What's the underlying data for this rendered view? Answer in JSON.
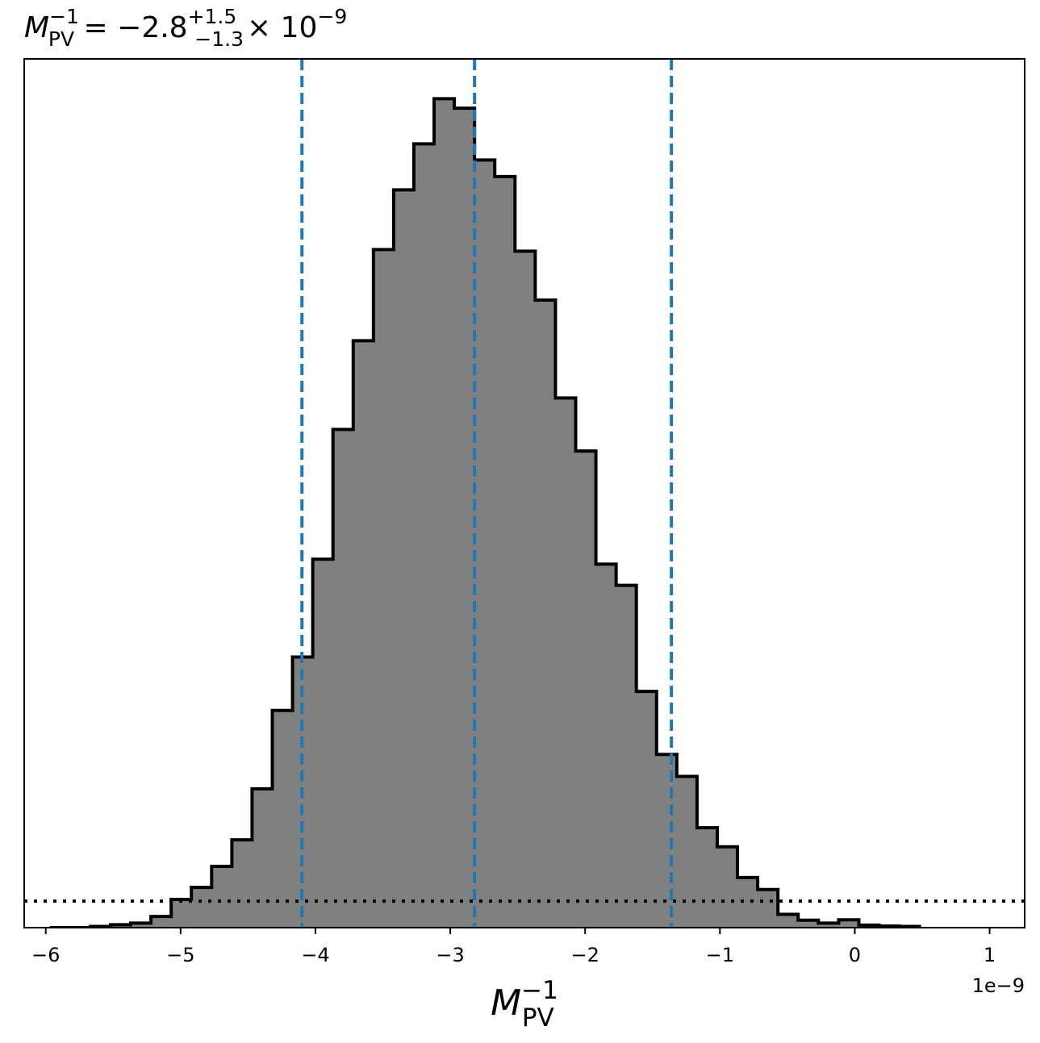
{
  "chart_data": {
    "type": "histogram",
    "title": {
      "lhs_symbol": "M",
      "lhs_sub": "PV",
      "lhs_sup": "−1",
      "equals": "=",
      "median": "−2.8",
      "upper_err": "+1.5",
      "lower_err": "−1.3",
      "times": "×",
      "base": "10",
      "exponent": "−9"
    },
    "xlabel": {
      "symbol": "M",
      "sub": "PV",
      "sup": "−1"
    },
    "x_scale_label": "1e−9",
    "x_ticks": [
      {
        "value": -6,
        "label": "−6"
      },
      {
        "value": -5,
        "label": "−5"
      },
      {
        "value": -4,
        "label": "−4"
      },
      {
        "value": -3,
        "label": "−3"
      },
      {
        "value": -2,
        "label": "−2"
      },
      {
        "value": -1,
        "label": "−1"
      },
      {
        "value": 0,
        "label": "0"
      },
      {
        "value": 1,
        "label": "1"
      }
    ],
    "xlim": [
      -6.16,
      1.26
    ],
    "ylim": [
      0,
      1.048
    ],
    "y_ticks_shown": false,
    "bin_edges": [
      -5.97,
      -5.82,
      -5.67,
      -5.52,
      -5.37,
      -5.22,
      -5.07,
      -4.92,
      -4.77,
      -4.62,
      -4.47,
      -4.32,
      -4.17,
      -4.02,
      -3.87,
      -3.72,
      -3.57,
      -3.42,
      -3.27,
      -3.12,
      -2.97,
      -2.82,
      -2.67,
      -2.52,
      -2.37,
      -2.22,
      -2.07,
      -1.92,
      -1.77,
      -1.62,
      -1.47,
      -1.32,
      -1.17,
      -1.02,
      -0.87,
      -0.72,
      -0.57,
      -0.42,
      -0.27,
      -0.12,
      0.03,
      0.18,
      0.33,
      0.48
    ],
    "counts": [
      0.0,
      0.0,
      0.0015,
      0.0035,
      0.0055,
      0.0135,
      0.034,
      0.0485,
      0.074,
      0.106,
      0.1675,
      0.262,
      0.3265,
      0.4445,
      0.601,
      0.708,
      0.818,
      0.89,
      0.9455,
      1.0,
      0.9885,
      0.926,
      0.906,
      0.816,
      0.757,
      0.639,
      0.575,
      0.4385,
      0.413,
      0.285,
      0.209,
      0.1825,
      0.1205,
      0.0975,
      0.0605,
      0.046,
      0.016,
      0.009,
      0.0055,
      0.0095,
      0.003,
      0.002,
      0.0015
    ],
    "quantile_lines": [
      {
        "name": "lower",
        "value": -4.1
      },
      {
        "name": "median",
        "value": -2.82
      },
      {
        "name": "upper",
        "value": -1.36
      }
    ],
    "reference_level": 0.032,
    "colors": {
      "fill": "#808080",
      "edge": "#000000",
      "quantile": "#1f77b4",
      "reference": "#000000"
    }
  }
}
